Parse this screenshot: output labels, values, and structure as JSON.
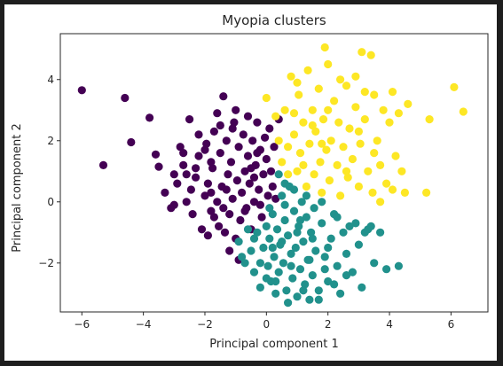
{
  "chart_data": {
    "type": "scatter",
    "title": "Myopia clusters",
    "xlabel": "Principal component 1",
    "ylabel": "Principal component 2",
    "xlim": [
      -6.7,
      7.2
    ],
    "ylim": [
      -3.6,
      5.5
    ],
    "xticks": [
      -6,
      -4,
      -2,
      0,
      2,
      4,
      6
    ],
    "yticks": [
      -2,
      0,
      2,
      4
    ],
    "xtick_labels": [
      "−6",
      "−4",
      "−2",
      "0",
      "2",
      "4",
      "6"
    ],
    "ytick_labels": [
      "−2",
      "0",
      "2",
      "4"
    ],
    "grid": false,
    "legend": "none",
    "series": [
      {
        "color": "#440154",
        "points": [
          [
            -6.0,
            3.65
          ],
          [
            -5.3,
            1.2
          ],
          [
            -4.6,
            3.4
          ],
          [
            -4.4,
            1.95
          ],
          [
            -3.8,
            2.75
          ],
          [
            -3.6,
            1.55
          ],
          [
            -3.5,
            1.15
          ],
          [
            -3.3,
            0.3
          ],
          [
            -3.1,
            -0.2
          ],
          [
            -3.0,
            -0.1
          ],
          [
            -2.8,
            1.8
          ],
          [
            -2.7,
            1.2
          ],
          [
            -2.6,
            0.9
          ],
          [
            -2.5,
            2.7
          ],
          [
            -2.45,
            0.4
          ],
          [
            -2.4,
            -0.4
          ],
          [
            -2.3,
            0.8
          ],
          [
            -2.2,
            1.5
          ],
          [
            -2.1,
            -0.9
          ],
          [
            -2.0,
            0.2
          ],
          [
            -1.95,
            1.9
          ],
          [
            -1.9,
            0.6
          ],
          [
            -1.8,
            -0.3
          ],
          [
            -1.75,
            1.1
          ],
          [
            -1.7,
            2.3
          ],
          [
            -1.6,
            0.0
          ],
          [
            -1.55,
            -0.8
          ],
          [
            -1.5,
            1.6
          ],
          [
            -1.45,
            0.5
          ],
          [
            -1.4,
            3.45
          ],
          [
            -1.35,
            -1.0
          ],
          [
            -1.3,
            2.0
          ],
          [
            -1.25,
            0.9
          ],
          [
            -1.2,
            -0.4
          ],
          [
            -1.15,
            1.3
          ],
          [
            -1.1,
            0.1
          ],
          [
            -1.05,
            2.6
          ],
          [
            -1.0,
            -1.2
          ],
          [
            -0.95,
            0.7
          ],
          [
            -0.9,
            1.8
          ],
          [
            -0.85,
            -0.6
          ],
          [
            -0.8,
            0.3
          ],
          [
            -0.75,
            2.2
          ],
          [
            -0.7,
            1.0
          ],
          [
            -0.65,
            -0.2
          ],
          [
            -0.6,
            1.5
          ],
          [
            -0.55,
            0.6
          ],
          [
            -0.5,
            -0.9
          ],
          [
            -0.45,
            2.0
          ],
          [
            -0.4,
            0.0
          ],
          [
            -0.35,
            1.2
          ],
          [
            -0.3,
            2.6
          ],
          [
            -0.25,
            0.4
          ],
          [
            -0.2,
            1.7
          ],
          [
            -0.15,
            -0.5
          ],
          [
            -0.1,
            0.9
          ],
          [
            -0.05,
            2.1
          ],
          [
            0.0,
            1.4
          ],
          [
            0.05,
            0.2
          ],
          [
            0.1,
            2.4
          ],
          [
            0.15,
            1.0
          ],
          [
            0.2,
            0.5
          ],
          [
            0.25,
            1.8
          ],
          [
            0.3,
            0.1
          ],
          [
            -2.2,
            2.2
          ],
          [
            -1.6,
            2.9
          ],
          [
            -2.9,
            0.6
          ],
          [
            -1.0,
            3.0
          ],
          [
            -0.6,
            2.8
          ],
          [
            -1.9,
            -1.1
          ],
          [
            -1.2,
            -1.6
          ],
          [
            -0.9,
            -1.9
          ],
          [
            -1.7,
            -0.5
          ],
          [
            -2.6,
            0.0
          ],
          [
            -1.3,
            0.4
          ],
          [
            -0.7,
            -0.3
          ],
          [
            -0.4,
            0.8
          ],
          [
            0.4,
            2.7
          ],
          [
            -2.3,
            1.1
          ],
          [
            -1.8,
            0.3
          ],
          [
            -1.4,
            -0.2
          ],
          [
            -0.2,
            -0.1
          ],
          [
            -3.0,
            0.9
          ],
          [
            -2.0,
            1.7
          ],
          [
            -1.1,
            2.4
          ],
          [
            -0.5,
            1.1
          ],
          [
            -1.5,
            2.5
          ],
          [
            -2.7,
            1.6
          ],
          [
            -0.3,
            1.6
          ],
          [
            -1.8,
            1.3
          ]
        ]
      },
      {
        "color": "#21918c",
        "points": [
          [
            -0.9,
            -1.3
          ],
          [
            -0.7,
            -2.0
          ],
          [
            -0.5,
            -1.6
          ],
          [
            -0.4,
            -2.3
          ],
          [
            -0.3,
            -1.0
          ],
          [
            -0.2,
            -2.8
          ],
          [
            -0.1,
            -1.5
          ],
          [
            0.0,
            -0.8
          ],
          [
            0.05,
            -2.1
          ],
          [
            0.1,
            -1.2
          ],
          [
            0.15,
            -2.6
          ],
          [
            0.2,
            -0.4
          ],
          [
            0.25,
            -1.8
          ],
          [
            0.3,
            -3.0
          ],
          [
            0.35,
            -0.9
          ],
          [
            0.4,
            -2.3
          ],
          [
            0.45,
            -1.4
          ],
          [
            0.5,
            0.2
          ],
          [
            0.55,
            -2.0
          ],
          [
            0.6,
            -0.6
          ],
          [
            0.65,
            -2.9
          ],
          [
            0.7,
            -1.1
          ],
          [
            0.75,
            0.5
          ],
          [
            0.8,
            -1.7
          ],
          [
            0.85,
            -2.5
          ],
          [
            0.9,
            -0.3
          ],
          [
            0.95,
            -1.5
          ],
          [
            1.0,
            -3.1
          ],
          [
            1.05,
            -0.8
          ],
          [
            1.1,
            -2.2
          ],
          [
            1.15,
            0.0
          ],
          [
            1.2,
            -1.3
          ],
          [
            1.25,
            -2.7
          ],
          [
            1.3,
            -0.5
          ],
          [
            1.35,
            -1.9
          ],
          [
            1.4,
            -3.2
          ],
          [
            1.45,
            -1.0
          ],
          [
            1.5,
            -2.4
          ],
          [
            1.55,
            -0.2
          ],
          [
            1.6,
            -1.6
          ],
          [
            1.7,
            -2.9
          ],
          [
            1.8,
            -0.7
          ],
          [
            1.9,
            -1.8
          ],
          [
            2.0,
            -2.6
          ],
          [
            2.1,
            -1.2
          ],
          [
            2.2,
            -0.4
          ],
          [
            2.3,
            -2.1
          ],
          [
            2.4,
            -3.0
          ],
          [
            2.5,
            -1.0
          ],
          [
            2.6,
            -1.7
          ],
          [
            2.7,
            -0.8
          ],
          [
            2.8,
            -2.3
          ],
          [
            3.0,
            -1.4
          ],
          [
            3.1,
            -2.8
          ],
          [
            3.2,
            -1.0
          ],
          [
            3.3,
            -0.9
          ],
          [
            3.5,
            -2.0
          ],
          [
            3.7,
            -1.0
          ],
          [
            3.9,
            -2.2
          ],
          [
            4.3,
            -2.1
          ],
          [
            0.4,
            0.9
          ],
          [
            0.6,
            0.6
          ],
          [
            0.9,
            0.4
          ],
          [
            1.3,
            0.2
          ],
          [
            1.8,
            0.0
          ],
          [
            2.3,
            -0.5
          ],
          [
            2.9,
            -0.7
          ],
          [
            3.4,
            -0.8
          ],
          [
            -0.6,
            -0.9
          ],
          [
            -0.2,
            -2.0
          ],
          [
            0.3,
            -2.6
          ],
          [
            0.7,
            -3.3
          ],
          [
            1.2,
            -2.9
          ],
          [
            1.7,
            -3.2
          ],
          [
            2.2,
            -2.7
          ],
          [
            0.0,
            -2.5
          ],
          [
            0.5,
            -1.3
          ],
          [
            1.0,
            -1.0
          ],
          [
            1.5,
            -1.2
          ],
          [
            2.0,
            -1.5
          ],
          [
            -0.8,
            -1.8
          ],
          [
            0.2,
            -1.5
          ],
          [
            0.8,
            -2.1
          ],
          [
            1.4,
            -1.9
          ],
          [
            2.6,
            -2.4
          ],
          [
            0.1,
            -0.2
          ],
          [
            0.6,
            -0.1
          ],
          [
            1.1,
            -0.6
          ],
          [
            -0.4,
            -1.2
          ],
          [
            1.9,
            -2.2
          ]
        ]
      },
      {
        "color": "#fde725",
        "points": [
          [
            0.0,
            3.4
          ],
          [
            0.3,
            2.8
          ],
          [
            0.5,
            1.3
          ],
          [
            0.6,
            3.0
          ],
          [
            0.7,
            1.8
          ],
          [
            0.8,
            4.1
          ],
          [
            0.9,
            2.2
          ],
          [
            1.0,
            1.0
          ],
          [
            1.05,
            3.5
          ],
          [
            1.1,
            1.6
          ],
          [
            1.2,
            2.6
          ],
          [
            1.3,
            0.5
          ],
          [
            1.35,
            4.3
          ],
          [
            1.4,
            1.9
          ],
          [
            1.5,
            3.0
          ],
          [
            1.55,
            0.9
          ],
          [
            1.6,
            2.3
          ],
          [
            1.7,
            3.7
          ],
          [
            1.75,
            1.3
          ],
          [
            1.8,
            0.3
          ],
          [
            1.85,
            2.7
          ],
          [
            1.9,
            5.05
          ],
          [
            1.95,
            1.7
          ],
          [
            2.0,
            4.5
          ],
          [
            2.05,
            0.7
          ],
          [
            2.1,
            2.0
          ],
          [
            2.2,
            3.3
          ],
          [
            2.3,
            1.2
          ],
          [
            2.35,
            2.6
          ],
          [
            2.4,
            0.2
          ],
          [
            2.5,
            1.8
          ],
          [
            2.6,
            3.8
          ],
          [
            2.65,
            0.8
          ],
          [
            2.7,
            2.4
          ],
          [
            2.8,
            1.4
          ],
          [
            2.9,
            3.1
          ],
          [
            3.0,
            0.5
          ],
          [
            3.05,
            1.9
          ],
          [
            3.1,
            4.9
          ],
          [
            3.2,
            2.7
          ],
          [
            3.3,
            1.0
          ],
          [
            3.4,
            4.8
          ],
          [
            3.45,
            0.3
          ],
          [
            3.5,
            3.5
          ],
          [
            3.6,
            2.0
          ],
          [
            3.7,
            1.2
          ],
          [
            3.8,
            3.0
          ],
          [
            3.9,
            0.6
          ],
          [
            4.0,
            2.6
          ],
          [
            4.1,
            3.6
          ],
          [
            4.2,
            1.5
          ],
          [
            4.3,
            2.9
          ],
          [
            4.5,
            0.3
          ],
          [
            4.6,
            3.2
          ],
          [
            5.2,
            0.3
          ],
          [
            5.3,
            2.7
          ],
          [
            6.1,
            3.75
          ],
          [
            6.4,
            2.95
          ],
          [
            0.4,
            2.0
          ],
          [
            0.9,
            2.9
          ],
          [
            1.5,
            2.5
          ],
          [
            2.0,
            3.0
          ],
          [
            2.6,
            1.0
          ],
          [
            3.2,
            3.6
          ],
          [
            3.7,
            0.0
          ],
          [
            4.4,
            1.0
          ],
          [
            1.2,
            1.2
          ],
          [
            2.4,
            4.0
          ],
          [
            3.0,
            2.3
          ],
          [
            1.8,
            1.9
          ],
          [
            0.7,
            0.9
          ],
          [
            2.9,
            4.1
          ],
          [
            3.5,
            1.6
          ],
          [
            4.1,
            0.4
          ],
          [
            1.0,
            3.9
          ]
        ]
      }
    ]
  }
}
